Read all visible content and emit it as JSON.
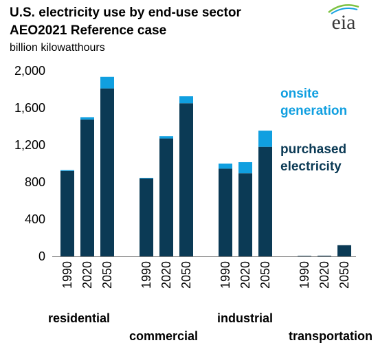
{
  "title": "U.S. electricity use by end-use sector",
  "subtitle": "AEO2021 Reference case",
  "units": "billion  kilowatthours",
  "logo": {
    "text": "eia",
    "colors": {
      "text": "#3a3a3a",
      "swoosh1": "#7dc242",
      "swoosh2": "#16a1e0"
    }
  },
  "colors": {
    "purchased": "#0b3a55",
    "onsite": "#109fe0"
  },
  "legend": {
    "onsite_line1": "onsite",
    "onsite_line2": "generation",
    "purchased_line1": "purchased",
    "purchased_line2": "electricity"
  },
  "sectors": [
    "residential",
    "commercial",
    "industrial",
    "transportation"
  ],
  "chart_data": {
    "type": "bar",
    "stacked": true,
    "title": "U.S. electricity use by end-use sector",
    "subtitle": "AEO2021 Reference case",
    "ylabel": "billion  kilowatthours",
    "ylim": [
      0,
      2000
    ],
    "yticks": [
      0,
      400,
      800,
      1200,
      1600,
      2000
    ],
    "ytick_labels": [
      "0",
      "400",
      "800",
      "1,200",
      "1,600",
      "2,000"
    ],
    "groups": [
      {
        "name": "residential",
        "categories": [
          "1990",
          "2020",
          "2050"
        ],
        "purchased": [
          920,
          1475,
          1810
        ],
        "onsite": [
          10,
          25,
          125
        ]
      },
      {
        "name": "commercial",
        "categories": [
          "1990",
          "2020",
          "2050"
        ],
        "purchased": [
          840,
          1270,
          1650
        ],
        "onsite": [
          5,
          25,
          75
        ]
      },
      {
        "name": "industrial",
        "categories": [
          "1990",
          "2020",
          "2050"
        ],
        "purchased": [
          945,
          895,
          1180
        ],
        "onsite": [
          55,
          120,
          175
        ]
      },
      {
        "name": "transportation",
        "categories": [
          "1990",
          "2020",
          "2050"
        ],
        "purchased": [
          5,
          7,
          120
        ],
        "onsite": [
          0,
          0,
          0
        ]
      }
    ],
    "series": [
      {
        "name": "purchased electricity",
        "key": "purchased"
      },
      {
        "name": "onsite generation",
        "key": "onsite"
      }
    ],
    "grid": false,
    "legend_position": "right"
  }
}
